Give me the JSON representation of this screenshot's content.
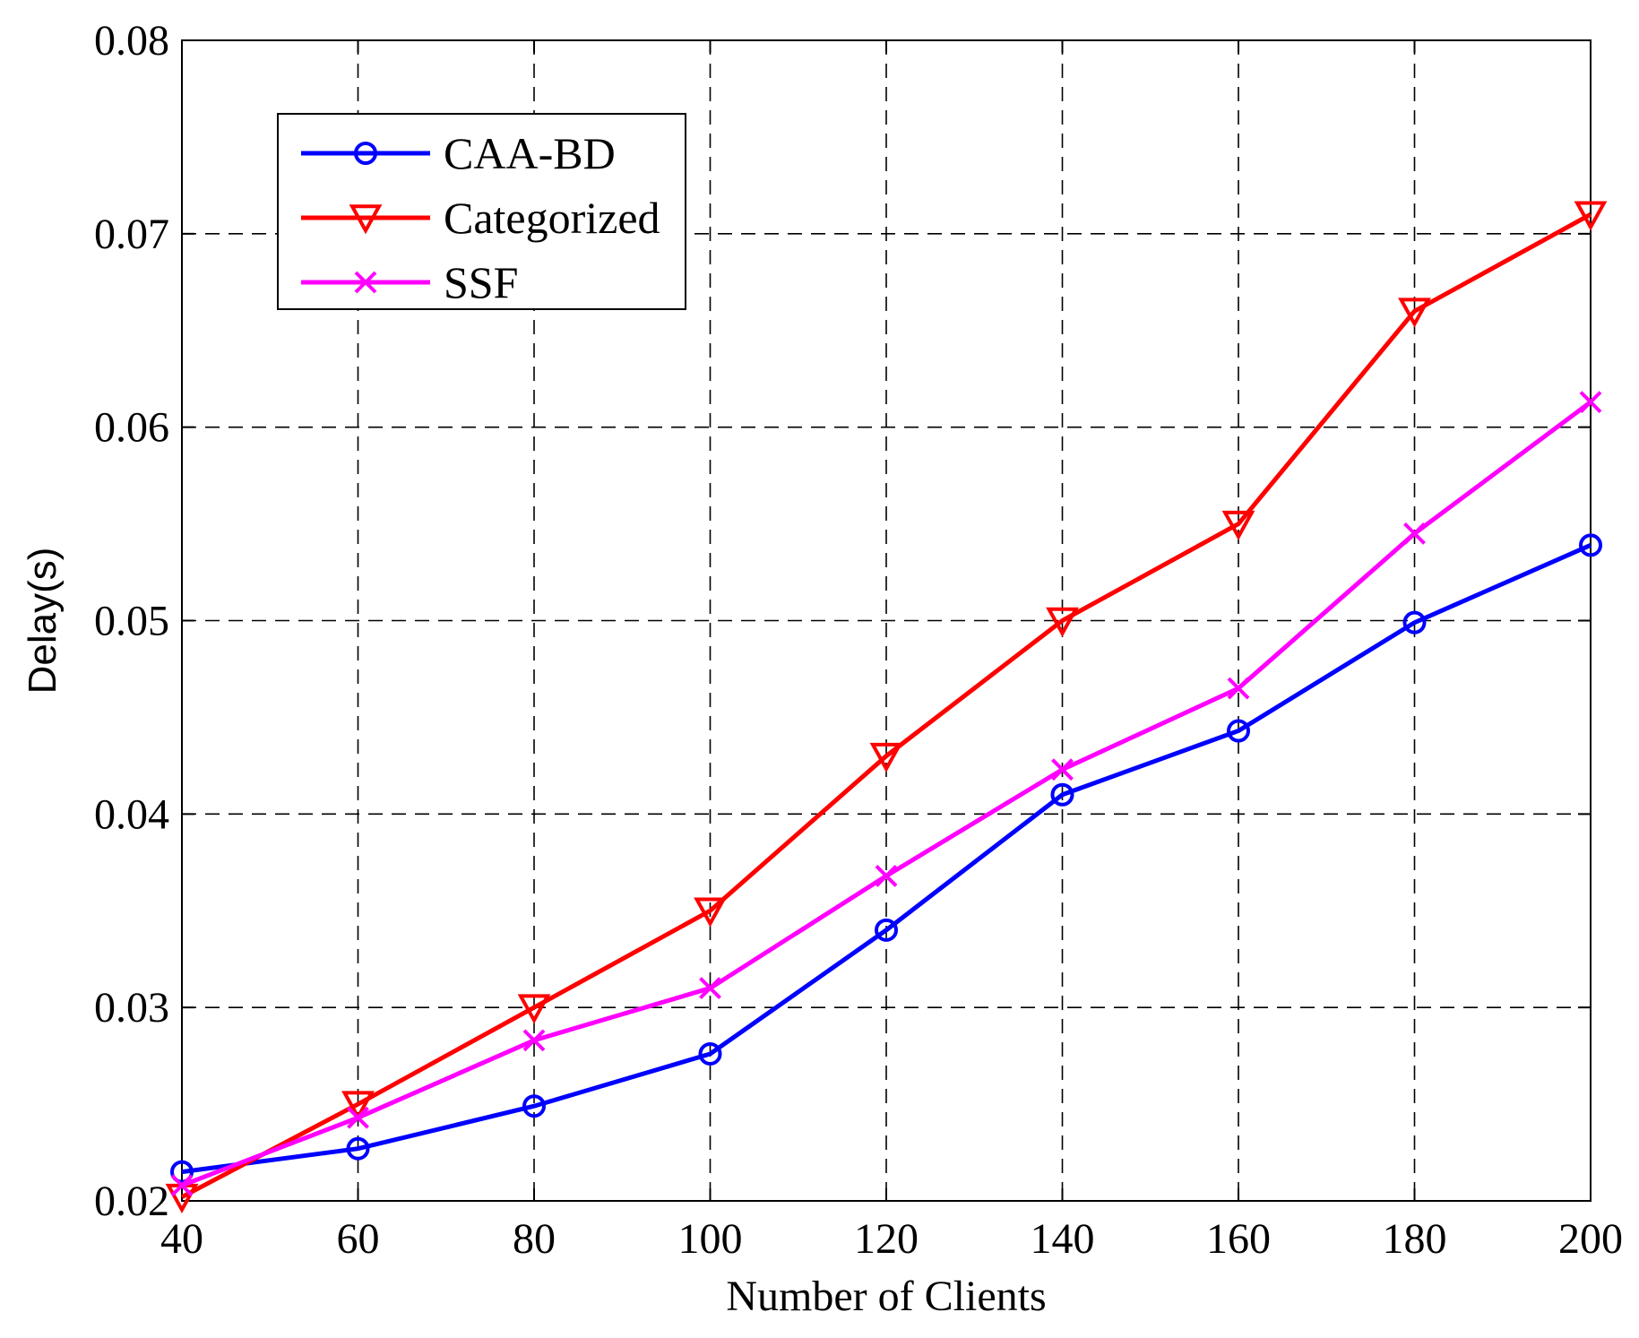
{
  "chart_data": {
    "type": "line",
    "title": "",
    "xlabel": "Number of Clients",
    "ylabel": "Delay(s)",
    "x": [
      40,
      60,
      80,
      100,
      120,
      140,
      160,
      180,
      200
    ],
    "xlim": [
      40,
      200
    ],
    "ylim": [
      0.02,
      0.08
    ],
    "xticks": [
      "40",
      "60",
      "80",
      "100",
      "120",
      "140",
      "160",
      "180",
      "200"
    ],
    "xtick_values": [
      40,
      60,
      80,
      100,
      120,
      140,
      160,
      180,
      200
    ],
    "yticks": [
      "0.02",
      "0.03",
      "0.04",
      "0.05",
      "0.06",
      "0.07",
      "0.08"
    ],
    "ytick_values": [
      0.02,
      0.03,
      0.04,
      0.05,
      0.06,
      0.07,
      0.08
    ],
    "grid": true,
    "legend_position": "top-left",
    "series": [
      {
        "name": "CAA-BD",
        "color": "#0000ff",
        "marker": "circle",
        "values": [
          0.0215,
          0.0227,
          0.0249,
          0.0276,
          0.034,
          0.041,
          0.0443,
          0.0499,
          0.0539
        ]
      },
      {
        "name": "Categorized",
        "color": "#ff0000",
        "marker": "triangle-down",
        "values": [
          0.0202,
          0.025,
          0.03,
          0.035,
          0.043,
          0.05,
          0.055,
          0.066,
          0.071
        ]
      },
      {
        "name": "SSF",
        "color": "#ff00ff",
        "marker": "x",
        "values": [
          0.0208,
          0.0243,
          0.0283,
          0.031,
          0.0368,
          0.0423,
          0.0465,
          0.0545,
          0.0613
        ]
      }
    ]
  }
}
